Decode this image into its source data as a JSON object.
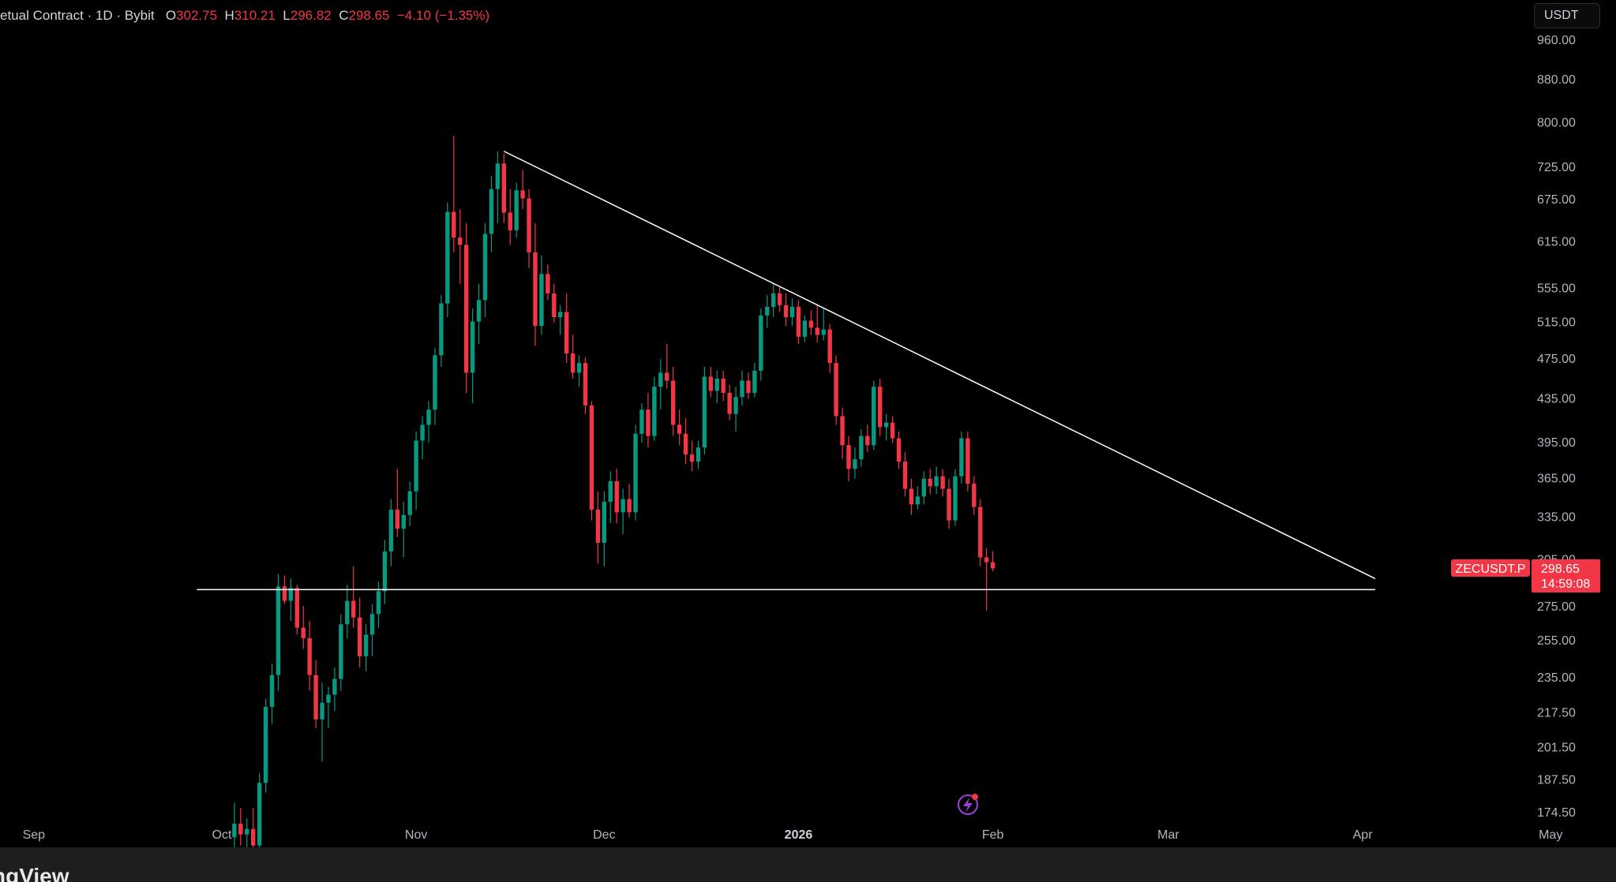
{
  "header": {
    "symbol_label": "etual Contract",
    "interval": "1D",
    "exchange": "Bybit",
    "open_label": "O",
    "open": "302.75",
    "high_label": "H",
    "high": "310.21",
    "low_label": "L",
    "low": "296.82",
    "close_label": "C",
    "close": "298.65",
    "change": "−4.10 (−1.35%)"
  },
  "toolbar": {
    "currency": "USDT"
  },
  "price_tag": {
    "ticker": "ZECUSDT.P",
    "price": "298.65",
    "countdown": "14:59:08"
  },
  "footer": {
    "logo_text": "ngView"
  },
  "icons": {
    "flash_icon": "lightning-bolt-icon"
  },
  "colors": {
    "up": "#089981",
    "down": "#f23645",
    "trendline": "#ffffff",
    "price_tag_bg": "#f23645",
    "flash_icon": "#9c3fd6"
  },
  "chart_data": {
    "type": "candlestick",
    "symbol": "ZECUSDT.P",
    "y_scale": "log",
    "ylim": [
      170,
      1000
    ],
    "y_ticks": [
      960,
      880,
      800,
      725,
      675,
      615,
      555,
      515,
      475,
      435,
      395,
      365,
      335,
      305,
      275,
      255,
      235,
      217.5,
      201.5,
      187.5,
      174.5
    ],
    "y_tick_labels": [
      "960.00",
      "880.00",
      "800.00",
      "725.00",
      "675.00",
      "615.00",
      "555.00",
      "515.00",
      "475.00",
      "435.00",
      "395.00",
      "365.00",
      "335.00",
      "305.00",
      "275.00",
      "255.00",
      "235.00",
      "217.50",
      "201.50",
      "187.50",
      "174.50"
    ],
    "x_range": [
      "2025-08-25",
      "2026-05-10"
    ],
    "x_ticks": [
      {
        "date": "2025-09-01",
        "label": "Sep",
        "bold": false
      },
      {
        "date": "2025-10-01",
        "label": "Oct",
        "bold": false
      },
      {
        "date": "2025-11-01",
        "label": "Nov",
        "bold": false
      },
      {
        "date": "2025-12-01",
        "label": "Dec",
        "bold": false
      },
      {
        "date": "2026-01-01",
        "label": "2026",
        "bold": true
      },
      {
        "date": "2026-02-01",
        "label": "Feb",
        "bold": false
      },
      {
        "date": "2026-03-01",
        "label": "Mar",
        "bold": false
      },
      {
        "date": "2026-04-01",
        "label": "Apr",
        "bold": false
      },
      {
        "date": "2026-05-01",
        "label": "May",
        "bold": false
      }
    ],
    "trendlines": [
      {
        "name": "descending-resistance",
        "from": {
          "date": "2025-11-15",
          "price": 750
        },
        "to": {
          "date": "2026-04-03",
          "price": 292
        }
      },
      {
        "name": "horizontal-support",
        "from": {
          "date": "2025-09-27",
          "price": 285
        },
        "to": {
          "date": "2026-04-03",
          "price": 285
        }
      }
    ],
    "last_price": 298.65,
    "candles": [
      {
        "date": "2025-10-03",
        "o": 165,
        "h": 178,
        "l": 160,
        "c": 170
      },
      {
        "date": "2025-10-04",
        "o": 170,
        "h": 176,
        "l": 162,
        "c": 166
      },
      {
        "date": "2025-10-05",
        "o": 166,
        "h": 172,
        "l": 160,
        "c": 168
      },
      {
        "date": "2025-10-06",
        "o": 168,
        "h": 176,
        "l": 160,
        "c": 162
      },
      {
        "date": "2025-10-07",
        "o": 162,
        "h": 190,
        "l": 160,
        "c": 186
      },
      {
        "date": "2025-10-08",
        "o": 186,
        "h": 224,
        "l": 182,
        "c": 220
      },
      {
        "date": "2025-10-09",
        "o": 220,
        "h": 242,
        "l": 212,
        "c": 236
      },
      {
        "date": "2025-10-10",
        "o": 236,
        "h": 295,
        "l": 228,
        "c": 287
      },
      {
        "date": "2025-10-11",
        "o": 287,
        "h": 294,
        "l": 276,
        "c": 278
      },
      {
        "date": "2025-10-12",
        "o": 278,
        "h": 292,
        "l": 266,
        "c": 286
      },
      {
        "date": "2025-10-13",
        "o": 286,
        "h": 288,
        "l": 258,
        "c": 262
      },
      {
        "date": "2025-10-14",
        "o": 262,
        "h": 275,
        "l": 250,
        "c": 256
      },
      {
        "date": "2025-10-15",
        "o": 256,
        "h": 266,
        "l": 228,
        "c": 236
      },
      {
        "date": "2025-10-16",
        "o": 236,
        "h": 244,
        "l": 210,
        "c": 214
      },
      {
        "date": "2025-10-17",
        "o": 214,
        "h": 232,
        "l": 195,
        "c": 222
      },
      {
        "date": "2025-10-18",
        "o": 222,
        "h": 230,
        "l": 210,
        "c": 226
      },
      {
        "date": "2025-10-19",
        "o": 226,
        "h": 240,
        "l": 218,
        "c": 234
      },
      {
        "date": "2025-10-20",
        "o": 234,
        "h": 270,
        "l": 228,
        "c": 264
      },
      {
        "date": "2025-10-21",
        "o": 264,
        "h": 288,
        "l": 256,
        "c": 278
      },
      {
        "date": "2025-10-22",
        "o": 278,
        "h": 300,
        "l": 262,
        "c": 268
      },
      {
        "date": "2025-10-23",
        "o": 268,
        "h": 280,
        "l": 240,
        "c": 246
      },
      {
        "date": "2025-10-24",
        "o": 246,
        "h": 264,
        "l": 238,
        "c": 258
      },
      {
        "date": "2025-10-25",
        "o": 258,
        "h": 276,
        "l": 246,
        "c": 270
      },
      {
        "date": "2025-10-26",
        "o": 270,
        "h": 290,
        "l": 262,
        "c": 284
      },
      {
        "date": "2025-10-27",
        "o": 284,
        "h": 318,
        "l": 276,
        "c": 310
      },
      {
        "date": "2025-10-28",
        "o": 310,
        "h": 348,
        "l": 300,
        "c": 340
      },
      {
        "date": "2025-10-29",
        "o": 340,
        "h": 372,
        "l": 320,
        "c": 326
      },
      {
        "date": "2025-10-30",
        "o": 326,
        "h": 346,
        "l": 306,
        "c": 336
      },
      {
        "date": "2025-10-31",
        "o": 336,
        "h": 362,
        "l": 328,
        "c": 354
      },
      {
        "date": "2025-11-01",
        "o": 354,
        "h": 404,
        "l": 340,
        "c": 396
      },
      {
        "date": "2025-11-02",
        "o": 396,
        "h": 418,
        "l": 380,
        "c": 410
      },
      {
        "date": "2025-11-03",
        "o": 410,
        "h": 432,
        "l": 394,
        "c": 424
      },
      {
        "date": "2025-11-04",
        "o": 424,
        "h": 486,
        "l": 410,
        "c": 478
      },
      {
        "date": "2025-11-05",
        "o": 478,
        "h": 546,
        "l": 466,
        "c": 536
      },
      {
        "date": "2025-11-06",
        "o": 536,
        "h": 670,
        "l": 520,
        "c": 656
      },
      {
        "date": "2025-11-07",
        "o": 656,
        "h": 776,
        "l": 600,
        "c": 620
      },
      {
        "date": "2025-11-08",
        "o": 620,
        "h": 660,
        "l": 560,
        "c": 610
      },
      {
        "date": "2025-11-09",
        "o": 610,
        "h": 640,
        "l": 440,
        "c": 460
      },
      {
        "date": "2025-11-10",
        "o": 460,
        "h": 530,
        "l": 430,
        "c": 515
      },
      {
        "date": "2025-11-11",
        "o": 515,
        "h": 560,
        "l": 490,
        "c": 540
      },
      {
        "date": "2025-11-12",
        "o": 540,
        "h": 640,
        "l": 520,
        "c": 625
      },
      {
        "date": "2025-11-13",
        "o": 625,
        "h": 710,
        "l": 600,
        "c": 690
      },
      {
        "date": "2025-11-14",
        "o": 690,
        "h": 750,
        "l": 640,
        "c": 730
      },
      {
        "date": "2025-11-15",
        "o": 730,
        "h": 746,
        "l": 640,
        "c": 655
      },
      {
        "date": "2025-11-16",
        "o": 655,
        "h": 690,
        "l": 610,
        "c": 630
      },
      {
        "date": "2025-11-17",
        "o": 630,
        "h": 700,
        "l": 620,
        "c": 688
      },
      {
        "date": "2025-11-18",
        "o": 688,
        "h": 720,
        "l": 660,
        "c": 676
      },
      {
        "date": "2025-11-19",
        "o": 676,
        "h": 690,
        "l": 580,
        "c": 600
      },
      {
        "date": "2025-11-20",
        "o": 600,
        "h": 640,
        "l": 488,
        "c": 510
      },
      {
        "date": "2025-11-21",
        "o": 510,
        "h": 596,
        "l": 500,
        "c": 572
      },
      {
        "date": "2025-11-22",
        "o": 572,
        "h": 584,
        "l": 540,
        "c": 548
      },
      {
        "date": "2025-11-23",
        "o": 548,
        "h": 560,
        "l": 514,
        "c": 520
      },
      {
        "date": "2025-11-24",
        "o": 520,
        "h": 534,
        "l": 500,
        "c": 526
      },
      {
        "date": "2025-11-25",
        "o": 526,
        "h": 548,
        "l": 470,
        "c": 480
      },
      {
        "date": "2025-11-26",
        "o": 480,
        "h": 500,
        "l": 454,
        "c": 460
      },
      {
        "date": "2025-11-27",
        "o": 460,
        "h": 478,
        "l": 446,
        "c": 470
      },
      {
        "date": "2025-11-28",
        "o": 470,
        "h": 476,
        "l": 420,
        "c": 428
      },
      {
        "date": "2025-11-29",
        "o": 428,
        "h": 432,
        "l": 332,
        "c": 340
      },
      {
        "date": "2025-11-30",
        "o": 340,
        "h": 354,
        "l": 302,
        "c": 316
      },
      {
        "date": "2025-12-01",
        "o": 316,
        "h": 354,
        "l": 300,
        "c": 346
      },
      {
        "date": "2025-12-02",
        "o": 346,
        "h": 370,
        "l": 330,
        "c": 362
      },
      {
        "date": "2025-12-03",
        "o": 362,
        "h": 372,
        "l": 330,
        "c": 338
      },
      {
        "date": "2025-12-04",
        "o": 338,
        "h": 356,
        "l": 322,
        "c": 348
      },
      {
        "date": "2025-12-05",
        "o": 348,
        "h": 360,
        "l": 334,
        "c": 338
      },
      {
        "date": "2025-12-06",
        "o": 338,
        "h": 410,
        "l": 332,
        "c": 402
      },
      {
        "date": "2025-12-07",
        "o": 402,
        "h": 430,
        "l": 394,
        "c": 424
      },
      {
        "date": "2025-12-08",
        "o": 424,
        "h": 440,
        "l": 390,
        "c": 400
      },
      {
        "date": "2025-12-09",
        "o": 400,
        "h": 456,
        "l": 396,
        "c": 446
      },
      {
        "date": "2025-12-10",
        "o": 446,
        "h": 474,
        "l": 424,
        "c": 460
      },
      {
        "date": "2025-12-11",
        "o": 460,
        "h": 490,
        "l": 444,
        "c": 452
      },
      {
        "date": "2025-12-12",
        "o": 452,
        "h": 466,
        "l": 400,
        "c": 410
      },
      {
        "date": "2025-12-13",
        "o": 410,
        "h": 424,
        "l": 392,
        "c": 402
      },
      {
        "date": "2025-12-14",
        "o": 402,
        "h": 416,
        "l": 376,
        "c": 384
      },
      {
        "date": "2025-12-15",
        "o": 384,
        "h": 396,
        "l": 370,
        "c": 378
      },
      {
        "date": "2025-12-16",
        "o": 378,
        "h": 396,
        "l": 372,
        "c": 390
      },
      {
        "date": "2025-12-17",
        "o": 390,
        "h": 466,
        "l": 384,
        "c": 456
      },
      {
        "date": "2025-12-18",
        "o": 456,
        "h": 466,
        "l": 436,
        "c": 442
      },
      {
        "date": "2025-12-19",
        "o": 442,
        "h": 462,
        "l": 430,
        "c": 454
      },
      {
        "date": "2025-12-20",
        "o": 454,
        "h": 462,
        "l": 432,
        "c": 440
      },
      {
        "date": "2025-12-21",
        "o": 440,
        "h": 448,
        "l": 414,
        "c": 420
      },
      {
        "date": "2025-12-22",
        "o": 420,
        "h": 446,
        "l": 404,
        "c": 436
      },
      {
        "date": "2025-12-23",
        "o": 436,
        "h": 462,
        "l": 428,
        "c": 452
      },
      {
        "date": "2025-12-24",
        "o": 452,
        "h": 460,
        "l": 434,
        "c": 440
      },
      {
        "date": "2025-12-25",
        "o": 440,
        "h": 470,
        "l": 436,
        "c": 462
      },
      {
        "date": "2025-12-26",
        "o": 462,
        "h": 530,
        "l": 452,
        "c": 522
      },
      {
        "date": "2025-12-27",
        "o": 522,
        "h": 546,
        "l": 508,
        "c": 532
      },
      {
        "date": "2025-12-28",
        "o": 532,
        "h": 560,
        "l": 520,
        "c": 548
      },
      {
        "date": "2025-12-29",
        "o": 548,
        "h": 556,
        "l": 526,
        "c": 534
      },
      {
        "date": "2025-12-30",
        "o": 534,
        "h": 548,
        "l": 510,
        "c": 520
      },
      {
        "date": "2025-12-31",
        "o": 520,
        "h": 542,
        "l": 510,
        "c": 532
      },
      {
        "date": "2026-01-01",
        "o": 532,
        "h": 540,
        "l": 490,
        "c": 498
      },
      {
        "date": "2026-01-02",
        "o": 498,
        "h": 522,
        "l": 492,
        "c": 516
      },
      {
        "date": "2026-01-03",
        "o": 516,
        "h": 528,
        "l": 500,
        "c": 508
      },
      {
        "date": "2026-01-04",
        "o": 508,
        "h": 534,
        "l": 492,
        "c": 500
      },
      {
        "date": "2026-01-05",
        "o": 500,
        "h": 530,
        "l": 494,
        "c": 506
      },
      {
        "date": "2026-01-06",
        "o": 506,
        "h": 512,
        "l": 460,
        "c": 470
      },
      {
        "date": "2026-01-07",
        "o": 470,
        "h": 478,
        "l": 410,
        "c": 418
      },
      {
        "date": "2026-01-08",
        "o": 418,
        "h": 426,
        "l": 380,
        "c": 392
      },
      {
        "date": "2026-01-09",
        "o": 392,
        "h": 400,
        "l": 362,
        "c": 372
      },
      {
        "date": "2026-01-10",
        "o": 372,
        "h": 390,
        "l": 364,
        "c": 380
      },
      {
        "date": "2026-01-11",
        "o": 380,
        "h": 406,
        "l": 374,
        "c": 400
      },
      {
        "date": "2026-01-12",
        "o": 400,
        "h": 410,
        "l": 386,
        "c": 392
      },
      {
        "date": "2026-01-13",
        "o": 392,
        "h": 452,
        "l": 388,
        "c": 446
      },
      {
        "date": "2026-01-14",
        "o": 446,
        "h": 454,
        "l": 400,
        "c": 408
      },
      {
        "date": "2026-01-15",
        "o": 408,
        "h": 420,
        "l": 396,
        "c": 412
      },
      {
        "date": "2026-01-16",
        "o": 412,
        "h": 418,
        "l": 394,
        "c": 398
      },
      {
        "date": "2026-01-17",
        "o": 398,
        "h": 404,
        "l": 372,
        "c": 378
      },
      {
        "date": "2026-01-18",
        "o": 378,
        "h": 386,
        "l": 350,
        "c": 356
      },
      {
        "date": "2026-01-19",
        "o": 356,
        "h": 364,
        "l": 336,
        "c": 344
      },
      {
        "date": "2026-01-20",
        "o": 344,
        "h": 358,
        "l": 340,
        "c": 350
      },
      {
        "date": "2026-01-21",
        "o": 350,
        "h": 370,
        "l": 344,
        "c": 364
      },
      {
        "date": "2026-01-22",
        "o": 364,
        "h": 372,
        "l": 352,
        "c": 358
      },
      {
        "date": "2026-01-23",
        "o": 358,
        "h": 374,
        "l": 352,
        "c": 366
      },
      {
        "date": "2026-01-24",
        "o": 366,
        "h": 372,
        "l": 350,
        "c": 356
      },
      {
        "date": "2026-01-25",
        "o": 356,
        "h": 364,
        "l": 326,
        "c": 332
      },
      {
        "date": "2026-01-26",
        "o": 332,
        "h": 372,
        "l": 328,
        "c": 366
      },
      {
        "date": "2026-01-27",
        "o": 366,
        "h": 404,
        "l": 360,
        "c": 398
      },
      {
        "date": "2026-01-28",
        "o": 398,
        "h": 404,
        "l": 354,
        "c": 360
      },
      {
        "date": "2026-01-29",
        "o": 360,
        "h": 366,
        "l": 336,
        "c": 342
      },
      {
        "date": "2026-01-30",
        "o": 342,
        "h": 348,
        "l": 300,
        "c": 306
      },
      {
        "date": "2026-01-31",
        "o": 306,
        "h": 312,
        "l": 272,
        "c": 302.75
      },
      {
        "date": "2026-02-01",
        "o": 302.75,
        "h": 310.21,
        "l": 296.82,
        "c": 298.65
      }
    ]
  }
}
